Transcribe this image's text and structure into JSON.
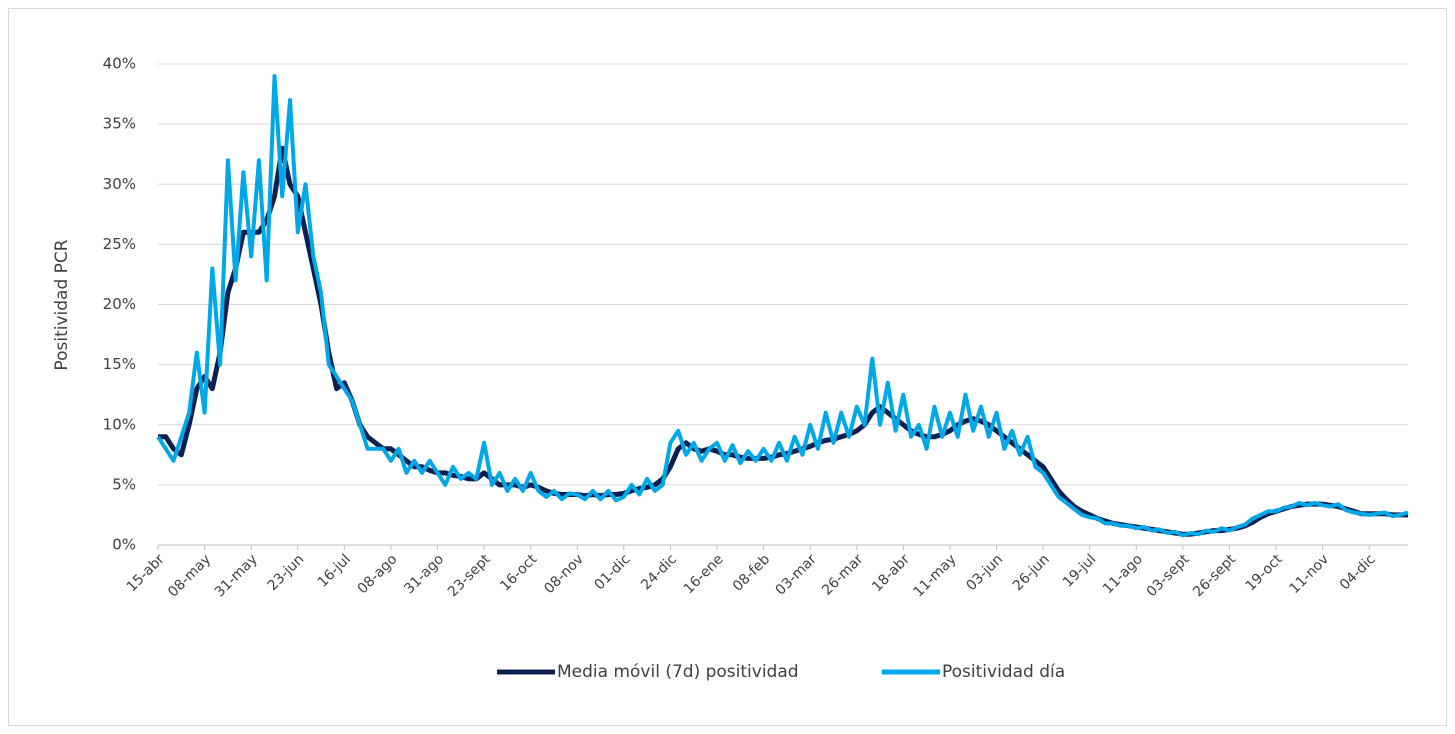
{
  "chart_data": {
    "type": "line",
    "y_label": "Positividad PCR",
    "categories": [
      "15-abr",
      null,
      null,
      null,
      null,
      null,
      "08-may",
      null,
      null,
      null,
      null,
      null,
      "31-may",
      null,
      null,
      null,
      null,
      null,
      "23-jun",
      null,
      null,
      null,
      null,
      null,
      "16-jul",
      null,
      null,
      null,
      null,
      null,
      "08-ago",
      null,
      null,
      null,
      null,
      null,
      "31-ago",
      null,
      null,
      null,
      null,
      null,
      "23-sept",
      null,
      null,
      null,
      null,
      null,
      "16-oct",
      null,
      null,
      null,
      null,
      null,
      "08-nov",
      null,
      null,
      null,
      null,
      null,
      "01-dic",
      null,
      null,
      null,
      null,
      null,
      "24-dic",
      null,
      null,
      null,
      null,
      null,
      "16-ene",
      null,
      null,
      null,
      null,
      null,
      "08-feb",
      null,
      null,
      null,
      null,
      null,
      "03-mar",
      null,
      null,
      null,
      null,
      null,
      "26-mar",
      null,
      null,
      null,
      null,
      null,
      "18-abr",
      null,
      null,
      null,
      null,
      null,
      "11-may",
      null,
      null,
      null,
      null,
      null,
      "03-jun",
      null,
      null,
      null,
      null,
      null,
      "26-jun",
      null,
      null,
      null,
      null,
      null,
      "19-jul",
      null,
      null,
      null,
      null,
      null,
      "11-ago",
      null,
      null,
      null,
      null,
      null,
      "03-sept",
      null,
      null,
      null,
      null,
      null,
      "26-sept",
      null,
      null,
      null,
      null,
      null,
      "19-oct",
      null,
      null,
      null,
      null,
      null,
      "11-nov",
      null,
      null,
      null,
      null,
      null,
      "04-dic",
      null,
      null,
      null,
      null,
      null
    ],
    "series": [
      {
        "name": "Media móvil (7d) positividad",
        "color": "#0b1f51",
        "values": [
          9,
          9,
          8,
          7.5,
          10,
          13,
          14,
          13,
          16,
          21,
          23,
          26,
          26,
          26,
          27,
          29,
          33,
          30,
          29,
          26,
          23,
          20,
          16,
          13,
          13.5,
          12,
          10,
          9,
          8.5,
          8,
          8,
          7.5,
          7,
          6.5,
          6.5,
          6.2,
          6,
          6,
          5.8,
          5.7,
          5.5,
          5.5,
          6,
          5.5,
          5,
          5,
          5,
          4.8,
          5,
          4.8,
          4.5,
          4.3,
          4.2,
          4.2,
          4.2,
          4.1,
          4.2,
          4.1,
          4.2,
          4.2,
          4.3,
          4.5,
          4.7,
          4.8,
          5,
          5.5,
          6.5,
          8,
          8.5,
          8,
          7.8,
          8,
          7.8,
          7.5,
          7.5,
          7.3,
          7.2,
          7.2,
          7.2,
          7.3,
          7.5,
          7.6,
          7.8,
          8,
          8.2,
          8.5,
          8.7,
          8.8,
          9,
          9.2,
          9.5,
          10,
          11,
          11.5,
          11,
          10.5,
          10,
          9.5,
          9.2,
          9,
          9,
          9.2,
          9.5,
          10,
          10.3,
          10.5,
          10.3,
          10,
          9.5,
          9,
          8.5,
          8,
          7.5,
          7,
          6.5,
          5.5,
          4.5,
          3.8,
          3.2,
          2.8,
          2.5,
          2.2,
          2,
          1.8,
          1.7,
          1.6,
          1.5,
          1.4,
          1.3,
          1.2,
          1.1,
          1,
          0.9,
          0.9,
          1,
          1.1,
          1.2,
          1.2,
          1.3,
          1.4,
          1.6,
          1.9,
          2.3,
          2.6,
          2.8,
          3,
          3.2,
          3.3,
          3.4,
          3.4,
          3.4,
          3.3,
          3.2,
          3,
          2.8,
          2.6,
          2.6,
          2.6,
          2.6,
          2.5,
          2.5,
          2.5
        ]
      },
      {
        "name": "Positividad día",
        "color": "#00a8e8",
        "values": [
          9,
          8,
          7,
          9,
          11,
          16,
          11,
          23,
          15,
          32,
          22,
          31,
          24,
          32,
          22,
          39,
          29,
          37,
          26,
          30,
          24,
          21,
          15,
          14,
          13,
          12,
          10,
          8,
          8,
          8,
          7,
          8,
          6,
          7,
          6,
          7,
          6,
          5,
          6.5,
          5.5,
          6,
          5.5,
          8.5,
          5,
          6,
          4.5,
          5.5,
          4.5,
          6,
          4.5,
          4,
          4.5,
          3.8,
          4.3,
          4.2,
          3.8,
          4.5,
          3.8,
          4.5,
          3.7,
          4,
          5,
          4.2,
          5.5,
          4.5,
          5,
          8.5,
          9.5,
          7.5,
          8.5,
          7,
          8,
          8.5,
          7,
          8.3,
          6.8,
          7.8,
          7,
          8,
          7,
          8.5,
          7,
          9,
          7.5,
          10,
          8,
          11,
          8.5,
          11,
          9,
          11.5,
          10,
          15.5,
          10,
          13.5,
          9.5,
          12.5,
          9,
          10,
          8,
          11.5,
          9,
          11,
          9,
          12.5,
          9.5,
          11.5,
          9,
          11,
          8,
          9.5,
          7.5,
          9,
          6.5,
          6,
          5,
          4,
          3.5,
          3,
          2.5,
          2.3,
          2.2,
          1.8,
          1.8,
          1.6,
          1.6,
          1.4,
          1.5,
          1.2,
          1.3,
          1,
          1.1,
          0.8,
          1,
          0.9,
          1.2,
          1.1,
          1.4,
          1.2,
          1.5,
          1.7,
          2.2,
          2.5,
          2.8,
          2.8,
          3.1,
          3.2,
          3.5,
          3.3,
          3.5,
          3.3,
          3.2,
          3.4,
          2.9,
          2.7,
          2.6,
          2.5,
          2.6,
          2.7,
          2.4,
          2.5,
          2.7
        ]
      }
    ],
    "ylim": [
      0,
      40
    ],
    "yticks": [
      {
        "value": 0,
        "label": "0%"
      },
      {
        "value": 5,
        "label": "5%"
      },
      {
        "value": 10,
        "label": "10%"
      },
      {
        "value": 15,
        "label": "15%"
      },
      {
        "value": 20,
        "label": "20%"
      },
      {
        "value": 25,
        "label": "25%"
      },
      {
        "value": 30,
        "label": "30%"
      },
      {
        "value": 35,
        "label": "35%"
      },
      {
        "value": 40,
        "label": "40%"
      }
    ],
    "grid": true,
    "legend": "bottom"
  }
}
